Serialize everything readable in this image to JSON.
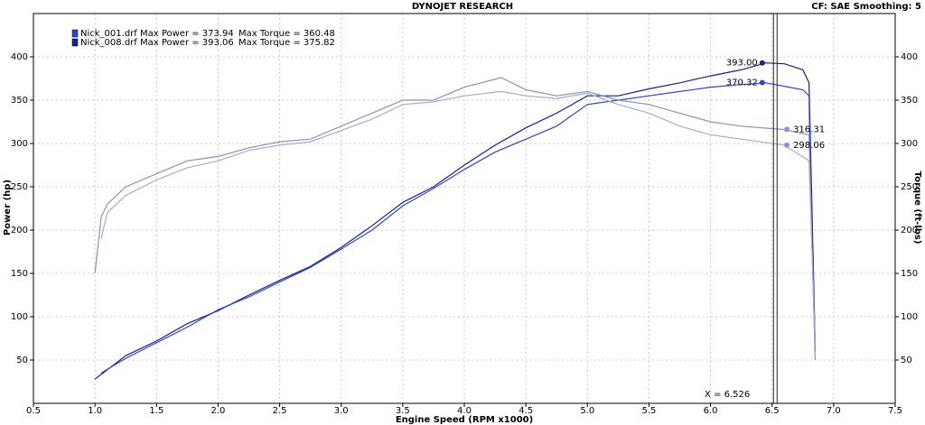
{
  "chart_data": {
    "type": "line",
    "title": "DYNOJET RESEARCH",
    "subtitle": "CF: SAE  Smoothing: 5",
    "x_label": "Engine Speed (RPM x1000)",
    "y_label": "Power (hp)",
    "y2_label": "Torque (ft-lbs)",
    "xlim": [
      0.5,
      7.5
    ],
    "xticks": [
      0.5,
      {
        "value": 1,
        "label": "1.0"
      },
      1.5,
      {
        "value": 2,
        "label": "2.0"
      },
      2.5,
      {
        "value": 3,
        "label": "3.0"
      },
      3.5,
      {
        "value": 4,
        "label": "4.0"
      },
      4.5,
      {
        "value": 5,
        "label": "5.0"
      },
      5.5,
      {
        "value": 6,
        "label": "6.0"
      },
      6.5,
      {
        "value": 7,
        "label": "7.0"
      },
      7.5
    ],
    "ylim": [
      0,
      450
    ],
    "yticks": [
      50,
      100,
      150,
      200,
      250,
      300,
      350,
      400
    ],
    "y2lim": [
      0,
      450
    ],
    "y2ticks": [
      50,
      100,
      150,
      200,
      250,
      300,
      350,
      400
    ],
    "grid": true,
    "legend": [
      {
        "label": "Nick_001.drf Max Power = 373.94",
        "torque": "Max Torque = 360.48",
        "color": "#3344cc"
      },
      {
        "label": "Nick_008.drf Max Power = 393.06",
        "torque": "Max Torque = 375.82",
        "color": "#1a237e"
      }
    ],
    "series": [
      {
        "color": "#1a237e",
        "x": [
          1.0,
          1.25,
          1.5,
          1.75,
          2.0,
          2.25,
          2.5,
          2.75,
          3.0,
          3.25,
          3.5,
          3.75,
          4.0,
          4.25,
          4.5,
          4.75,
          5.0,
          5.25,
          5.5,
          5.75,
          6.0,
          6.25,
          6.45,
          6.6,
          6.75,
          6.8,
          6.82,
          6.85
        ],
        "values": [
          28,
          55,
          72,
          92,
          107,
          125,
          142,
          158,
          180,
          205,
          232,
          250,
          275,
          298,
          318,
          335,
          355,
          355,
          363,
          370,
          378,
          385,
          393,
          392,
          385,
          370,
          250,
          70
        ]
      },
      {
        "color": "#3344cc",
        "x": [
          1.05,
          1.25,
          1.5,
          1.75,
          2.0,
          2.25,
          2.5,
          2.75,
          3.0,
          3.25,
          3.5,
          3.75,
          4.0,
          4.25,
          4.5,
          4.75,
          5.0,
          5.25,
          5.5,
          5.75,
          6.0,
          6.25,
          6.45,
          6.6,
          6.75,
          6.8,
          6.82,
          6.85
        ],
        "values": [
          35,
          52,
          70,
          88,
          108,
          123,
          140,
          157,
          178,
          200,
          228,
          248,
          270,
          290,
          305,
          320,
          345,
          350,
          355,
          360,
          365,
          368,
          370,
          366,
          362,
          355,
          200,
          60
        ]
      },
      {
        "color": "#8a92b8",
        "x": [
          1.0,
          1.05,
          1.1,
          1.25,
          1.5,
          1.75,
          2.0,
          2.25,
          2.5,
          2.75,
          3.0,
          3.25,
          3.5,
          3.75,
          4.0,
          4.3,
          4.5,
          4.75,
          5.0,
          5.25,
          5.5,
          5.75,
          6.0,
          6.25,
          6.6,
          6.8,
          6.85
        ],
        "values": [
          150,
          215,
          230,
          250,
          265,
          280,
          285,
          295,
          302,
          305,
          320,
          335,
          350,
          350,
          365,
          376,
          362,
          355,
          360,
          350,
          345,
          335,
          325,
          320,
          316,
          310,
          50
        ]
      },
      {
        "color": "#a6acc8",
        "x": [
          1.05,
          1.1,
          1.25,
          1.5,
          1.75,
          2.0,
          2.25,
          2.5,
          2.75,
          3.0,
          3.25,
          3.5,
          3.75,
          4.0,
          4.3,
          4.5,
          4.75,
          5.0,
          5.25,
          5.5,
          5.75,
          6.0,
          6.25,
          6.6,
          6.8,
          6.85
        ],
        "values": [
          190,
          220,
          240,
          258,
          272,
          280,
          292,
          298,
          302,
          315,
          328,
          345,
          348,
          355,
          360,
          355,
          352,
          358,
          345,
          335,
          320,
          310,
          305,
          298,
          280,
          70
        ]
      }
    ],
    "markers": [
      {
        "x": 6.42,
        "value": 393,
        "label": "393.00",
        "color": "#1a237e"
      },
      {
        "x": 6.42,
        "value": 370.32,
        "label": "370.32",
        "color": "#3344cc"
      },
      {
        "x": 6.62,
        "value": 316.31,
        "label": "316.31",
        "color": "#8a92d8"
      },
      {
        "x": 6.62,
        "value": 298.06,
        "label": "298.06",
        "color": "#8a92d8"
      }
    ],
    "cursor": {
      "value": 6.526,
      "label": "X = 6.526"
    }
  }
}
